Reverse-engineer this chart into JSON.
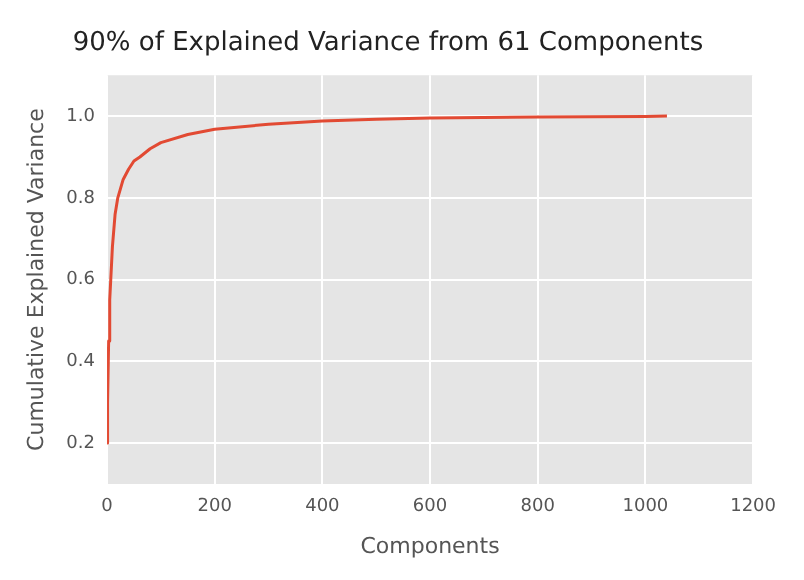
{
  "chart_data": {
    "type": "line",
    "title": "90% of Explained Variance from 61 Components",
    "xlabel": "Components",
    "ylabel": "Cumulative Explained Variance",
    "x": [
      0,
      1,
      3,
      5,
      10,
      15,
      20,
      30,
      40,
      50,
      61,
      80,
      100,
      150,
      200,
      300,
      400,
      500,
      600,
      800,
      1000,
      1040
    ],
    "series": [
      {
        "color": "#e24a33",
        "values": [
          0.2,
          0.3,
          0.45,
          0.55,
          0.68,
          0.76,
          0.8,
          0.845,
          0.87,
          0.89,
          0.9,
          0.92,
          0.935,
          0.955,
          0.968,
          0.98,
          0.988,
          0.992,
          0.995,
          0.998,
          0.999,
          1.0
        ]
      }
    ],
    "xlim": [
      0,
      1200
    ],
    "xticks": [
      0,
      200,
      400,
      600,
      800,
      1000,
      1200
    ],
    "ylim": [
      0.1,
      1.1
    ],
    "yticks": [
      0.2,
      0.4,
      0.6,
      0.8,
      {
        "value": 1,
        "label": "1.0"
      }
    ],
    "grid": true,
    "legend": false,
    "marker": "none",
    "line_style": "solid"
  }
}
